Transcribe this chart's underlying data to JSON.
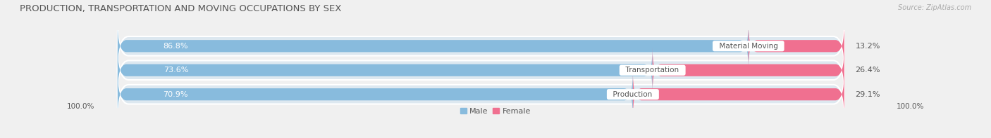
{
  "title": "PRODUCTION, TRANSPORTATION AND MOVING OCCUPATIONS BY SEX",
  "source": "Source: ZipAtlas.com",
  "categories": [
    "Material Moving",
    "Transportation",
    "Production"
  ],
  "male_values": [
    86.8,
    73.6,
    70.9
  ],
  "female_values": [
    13.2,
    26.4,
    29.1
  ],
  "male_color": "#88bbdd",
  "female_color": "#f07090",
  "bar_bg_color": "#dde8f0",
  "background_color": "#f0f0f0",
  "title_color": "#555555",
  "source_color": "#aaaaaa",
  "male_label_color": "#ffffff",
  "pct_label_color": "#555555",
  "cat_label_color": "#555555",
  "title_fontsize": 9.5,
  "source_fontsize": 7,
  "bar_label_fontsize": 8,
  "cat_label_fontsize": 7.5,
  "legend_fontsize": 8,
  "axis_label_fontsize": 7.5,
  "bar_height": 0.5,
  "bar_gap": 0.85,
  "x_min": 0,
  "x_max": 100
}
